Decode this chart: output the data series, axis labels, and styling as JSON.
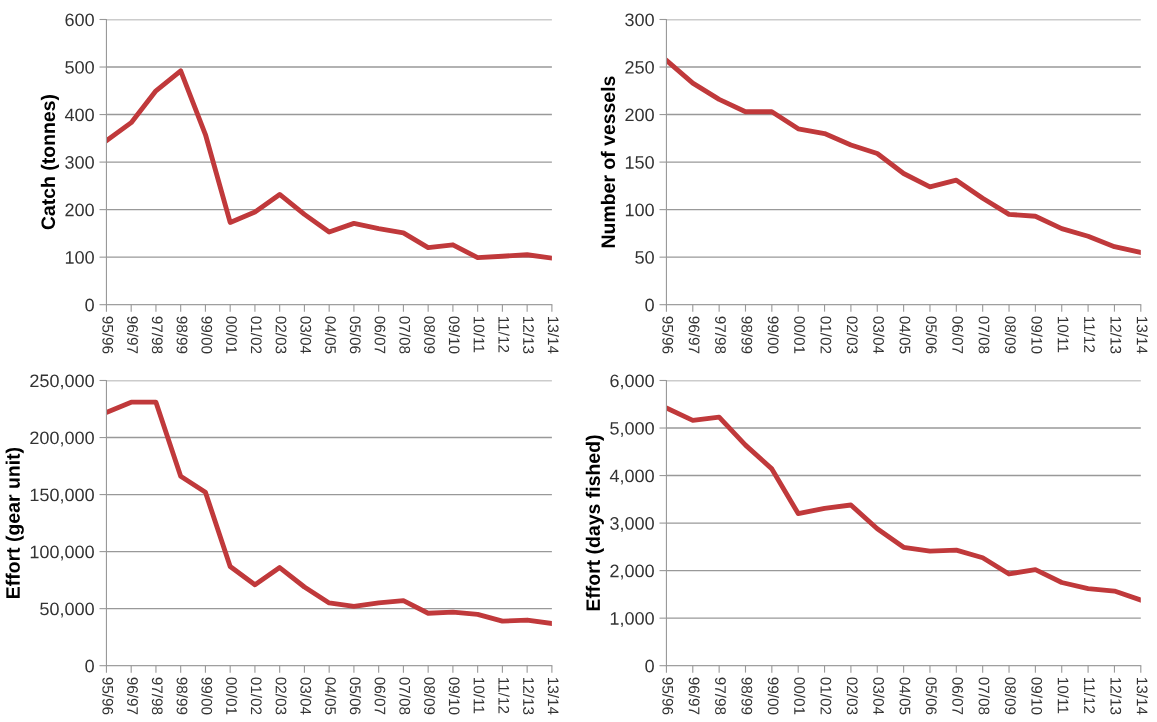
{
  "chart_data": [
    {
      "type": "line",
      "ylabel": "Catch (tonnes)",
      "categories": [
        "95/96",
        "96/97",
        "97/98",
        "98/99",
        "99/00",
        "00/01",
        "01/02",
        "02/03",
        "03/04",
        "04/05",
        "05/06",
        "06/07",
        "07/08",
        "08/09",
        "09/10",
        "10/11",
        "11/12",
        "12/13",
        "13/14"
      ],
      "series": [
        {
          "color": "#c0393b",
          "values": [
            345,
            383,
            450,
            492,
            358,
            173,
            195,
            232,
            190,
            153,
            171,
            160,
            151,
            120,
            126,
            99,
            102,
            105,
            98
          ]
        }
      ],
      "ylim": [
        0,
        600
      ],
      "yticks": [
        0,
        100,
        200,
        300,
        400,
        500,
        600
      ],
      "grid": "y",
      "marker": "none",
      "line_style": "solid"
    },
    {
      "type": "line",
      "ylabel": "Number of vessels",
      "categories": [
        "95/96",
        "96/97",
        "97/98",
        "98/99",
        "99/00",
        "00/01",
        "01/02",
        "02/03",
        "03/04",
        "04/05",
        "05/06",
        "06/07",
        "07/08",
        "08/09",
        "09/10",
        "10/11",
        "11/12",
        "12/13",
        "13/14"
      ],
      "series": [
        {
          "color": "#c0393b",
          "values": [
            257,
            233,
            216,
            203,
            203,
            185,
            180,
            168,
            159,
            138,
            124,
            131,
            112,
            95,
            93,
            80,
            72,
            61,
            55
          ]
        }
      ],
      "ylim": [
        0,
        300
      ],
      "yticks": [
        0,
        50,
        100,
        150,
        200,
        250,
        300
      ],
      "grid": "y",
      "marker": "none",
      "line_style": "solid"
    },
    {
      "type": "line",
      "ylabel": "Effort (gear unit)",
      "categories": [
        "95/96",
        "96/97",
        "97/98",
        "98/99",
        "99/00",
        "00/01",
        "01/02",
        "02/03",
        "03/04",
        "04/05",
        "05/06",
        "06/07",
        "07/08",
        "08/09",
        "09/10",
        "10/11",
        "11/12",
        "12/13",
        "13/14"
      ],
      "series": [
        {
          "color": "#c0393b",
          "values": [
            222000,
            231000,
            231000,
            166000,
            152000,
            87000,
            71000,
            86000,
            69000,
            55000,
            52000,
            55000,
            57000,
            46000,
            47000,
            45000,
            39000,
            40000,
            37000
          ]
        }
      ],
      "ylim": [
        0,
        250000
      ],
      "yticks": [
        {
          "value": 0,
          "label": "0"
        },
        {
          "value": 50000,
          "label": "50,000"
        },
        {
          "value": 100000,
          "label": "100,000"
        },
        {
          "value": 150000,
          "label": "150,000"
        },
        {
          "value": 200000,
          "label": "200,000"
        },
        {
          "value": 250000,
          "label": "250,000"
        }
      ],
      "grid": "y",
      "marker": "none",
      "line_style": "solid"
    },
    {
      "type": "line",
      "ylabel": "Effort (days fished)",
      "categories": [
        "95/96",
        "96/97",
        "97/98",
        "98/99",
        "99/00",
        "00/01",
        "01/02",
        "02/03",
        "03/04",
        "04/05",
        "05/06",
        "06/07",
        "07/08",
        "08/09",
        "09/10",
        "10/11",
        "11/12",
        "12/13",
        "13/14"
      ],
      "series": [
        {
          "color": "#c0393b",
          "values": [
            5420,
            5160,
            5230,
            4640,
            4140,
            3200,
            3310,
            3380,
            2880,
            2490,
            2410,
            2430,
            2270,
            1930,
            2020,
            1750,
            1620,
            1570,
            1380
          ]
        }
      ],
      "ylim": [
        0,
        6000
      ],
      "yticks": [
        {
          "value": 0,
          "label": "0"
        },
        {
          "value": 1000,
          "label": "1,000"
        },
        {
          "value": 2000,
          "label": "2,000"
        },
        {
          "value": 3000,
          "label": "3,000"
        },
        {
          "value": 4000,
          "label": "4,000"
        },
        {
          "value": 5000,
          "label": "5,000"
        },
        {
          "value": 6000,
          "label": "6,000"
        }
      ],
      "grid": "y",
      "marker": "none",
      "line_style": "solid"
    }
  ]
}
